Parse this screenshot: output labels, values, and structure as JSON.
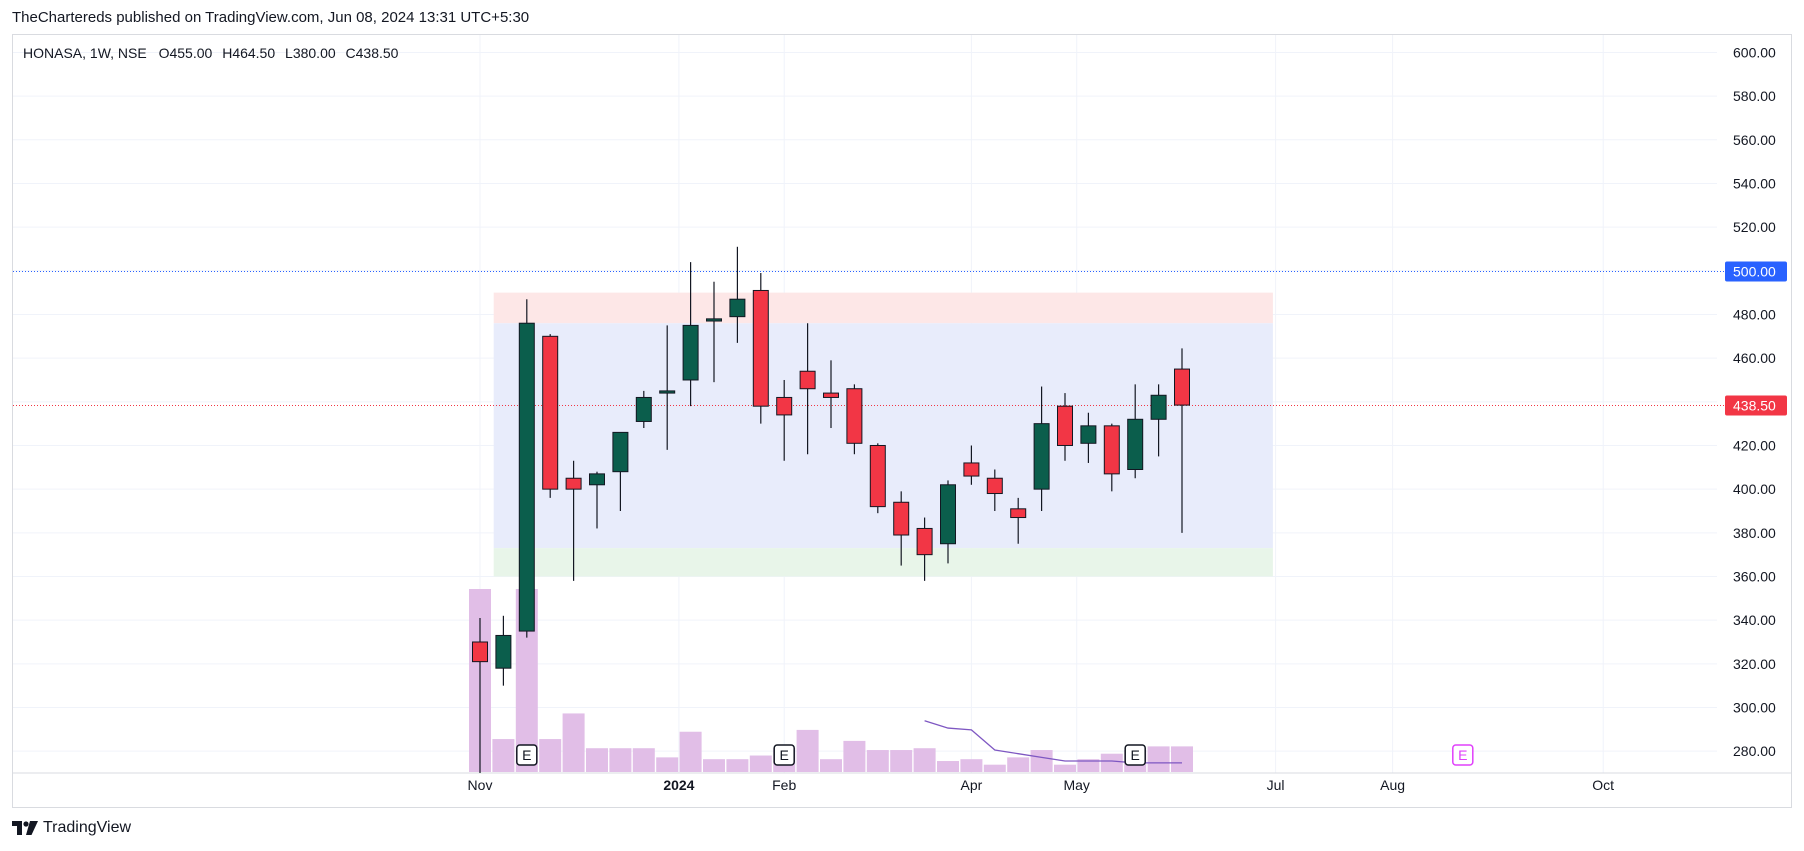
{
  "header": {
    "published": "TheChartereds published on TradingView.com, Jun 08, 2024 13:31 UTC+5:30"
  },
  "legend": {
    "symbol": "HONASA, 1W, NSE",
    "open": "O455.00",
    "high": "H464.50",
    "low": "L380.00",
    "close": "C438.50"
  },
  "footer": {
    "brand": "TradingView"
  },
  "colors": {
    "up": "#0b5e4c",
    "down": "#f23645",
    "volume": "#e1bee7",
    "accent_blue": "#2962ff",
    "last_price": "#f23645",
    "earnings_future": "#e040fb",
    "ma_line": "#7e57c2"
  },
  "chart_data": {
    "type": "candlestick",
    "timeframe": "1W",
    "y_range": [
      270,
      608
    ],
    "y_ticks": [
      600,
      580,
      560,
      540,
      520,
      500,
      480,
      460,
      440,
      420,
      400,
      380,
      360,
      340,
      320,
      300,
      280
    ],
    "y_tick_labels": [
      "600.00",
      "580.00",
      "560.00",
      "540.00",
      "520.00",
      "500.00",
      "480.00",
      "460.00",
      "440.00",
      "420.00",
      "400.00",
      "380.00",
      "360.00",
      "340.00",
      "320.00",
      "300.00",
      "280.00"
    ],
    "x_labels": [
      {
        "label": "Nov",
        "bar": 0,
        "bold": false
      },
      {
        "label": "2024",
        "bar": 8.5,
        "bold": true
      },
      {
        "label": "Feb",
        "bar": 13,
        "bold": false
      },
      {
        "label": "Apr",
        "bar": 21,
        "bold": false
      },
      {
        "label": "May",
        "bar": 25.5,
        "bold": false
      },
      {
        "label": "Jul",
        "bar": 34,
        "bold": false
      },
      {
        "label": "Aug",
        "bar": 39,
        "bold": false
      },
      {
        "label": "Oct",
        "bar": 48,
        "bold": false
      }
    ],
    "candles": [
      {
        "o": 330,
        "h": 341,
        "l": 270,
        "c": 321
      },
      {
        "o": 318,
        "h": 342,
        "l": 310,
        "c": 333
      },
      {
        "o": 335,
        "h": 487,
        "l": 332,
        "c": 476
      },
      {
        "o": 470,
        "h": 471,
        "l": 396,
        "c": 400
      },
      {
        "o": 405,
        "h": 413,
        "l": 358,
        "c": 400
      },
      {
        "o": 402,
        "h": 408,
        "l": 382,
        "c": 407
      },
      {
        "o": 408,
        "h": 426,
        "l": 390,
        "c": 426
      },
      {
        "o": 431,
        "h": 445,
        "l": 428,
        "c": 442
      },
      {
        "o": 444,
        "h": 475,
        "l": 418,
        "c": 445
      },
      {
        "o": 450,
        "h": 504,
        "l": 438,
        "c": 475
      },
      {
        "o": 477,
        "h": 495,
        "l": 449,
        "c": 478
      },
      {
        "o": 479,
        "h": 511,
        "l": 467,
        "c": 487
      },
      {
        "o": 491,
        "h": 499,
        "l": 430,
        "c": 438
      },
      {
        "o": 442,
        "h": 450,
        "l": 413,
        "c": 434
      },
      {
        "o": 454,
        "h": 476,
        "l": 416,
        "c": 446
      },
      {
        "o": 444,
        "h": 459,
        "l": 428,
        "c": 442
      },
      {
        "o": 446,
        "h": 448,
        "l": 416,
        "c": 421
      },
      {
        "o": 420,
        "h": 421,
        "l": 389,
        "c": 392
      },
      {
        "o": 394,
        "h": 399,
        "l": 365,
        "c": 379
      },
      {
        "o": 382,
        "h": 387,
        "l": 358,
        "c": 370
      },
      {
        "o": 375,
        "h": 404,
        "l": 366,
        "c": 402
      },
      {
        "o": 412,
        "h": 420,
        "l": 402,
        "c": 406
      },
      {
        "o": 405,
        "h": 409,
        "l": 390,
        "c": 398
      },
      {
        "o": 391,
        "h": 396,
        "l": 375,
        "c": 387
      },
      {
        "o": 400,
        "h": 447,
        "l": 390,
        "c": 430
      },
      {
        "o": 438,
        "h": 444,
        "l": 413,
        "c": 420
      },
      {
        "o": 421,
        "h": 435,
        "l": 412,
        "c": 429
      },
      {
        "o": 429,
        "h": 430,
        "l": 399,
        "c": 407
      },
      {
        "o": 409,
        "h": 448,
        "l": 405,
        "c": 432
      },
      {
        "o": 432,
        "h": 448,
        "l": 415,
        "c": 443
      },
      {
        "o": 455,
        "h": 464.5,
        "l": 380,
        "c": 438.5
      }
    ],
    "volumes": [
      100,
      18,
      100,
      18,
      32,
      13,
      13,
      13,
      8,
      22,
      7,
      7,
      9,
      13,
      23,
      7,
      17,
      12,
      12,
      13,
      6,
      7,
      4,
      8,
      12,
      4,
      7,
      10,
      12,
      14,
      14
    ],
    "volume_ma": [
      [
        19,
        28
      ],
      [
        20,
        24
      ],
      [
        21,
        23
      ],
      [
        22,
        12
      ],
      [
        23,
        10
      ],
      [
        24,
        8
      ],
      [
        25,
        6
      ],
      [
        26,
        6
      ],
      [
        27,
        6
      ],
      [
        28,
        5
      ],
      [
        29,
        5
      ],
      [
        30,
        5
      ]
    ],
    "earnings_markers": [
      {
        "label": "E",
        "bar": 2,
        "future": false
      },
      {
        "label": "E",
        "bar": 13,
        "future": false
      },
      {
        "label": "E",
        "bar": 28,
        "future": false
      },
      {
        "label": "E",
        "bar": 42,
        "future": true
      }
    ],
    "zones": [
      {
        "kind": "target",
        "from_bar": 1,
        "to_bar": 33,
        "top": 490,
        "bottom": 476,
        "color": "#fde7e7"
      },
      {
        "kind": "range",
        "from_bar": 1,
        "to_bar": 33,
        "top": 476,
        "bottom": 373,
        "color": "#e8ecfb"
      },
      {
        "kind": "stop",
        "from_bar": 1,
        "to_bar": 33,
        "top": 373,
        "bottom": 360,
        "color": "#e8f5e9"
      }
    ],
    "hlines": [
      {
        "price": 500,
        "label": "500.00",
        "color": "#2962ff",
        "style": "dotted"
      },
      {
        "price": 438.5,
        "label": "438.50",
        "color": "#f23645",
        "style": "dotted"
      }
    ],
    "grid": true
  }
}
